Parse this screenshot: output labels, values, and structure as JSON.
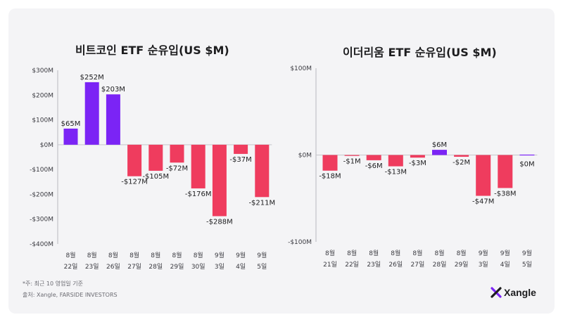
{
  "charts": [
    {
      "title": "비트코인 ETF 순유입(US $M)"
    },
    {
      "title": "이더리움 ETF 순유입(US $M)"
    }
  ],
  "chart_data": [
    {
      "type": "bar",
      "title": "비트코인 ETF 순유입(US $M)",
      "categories": [
        [
          "8월",
          "22일"
        ],
        [
          "8월",
          "23일"
        ],
        [
          "8월",
          "26일"
        ],
        [
          "8월",
          "27일"
        ],
        [
          "8월",
          "28일"
        ],
        [
          "8월",
          "29일"
        ],
        [
          "8월",
          "30일"
        ],
        [
          "9월",
          "3일"
        ],
        [
          "9월",
          "4일"
        ],
        [
          "9월",
          "5일"
        ]
      ],
      "values": [
        65,
        252,
        203,
        -127,
        -105,
        -72,
        -176,
        -288,
        -37,
        -211
      ],
      "data_labels": [
        "$65M",
        "$252M",
        "$203M",
        "-$127M",
        "-$105M",
        "-$72M",
        "-$176M",
        "-$288M",
        "-$37M",
        "-$211M"
      ],
      "ylim": [
        -400,
        300
      ],
      "yticks": [
        300,
        200,
        100,
        0,
        -100,
        -200,
        -300,
        -400
      ],
      "ytick_labels": [
        "$300M",
        "$200M",
        "$100M",
        "$0M",
        "-$100M",
        "-$200M",
        "-$300M",
        "-$400M"
      ],
      "grid": false,
      "colors": {
        "positive": "#7b24f5",
        "negative": "#ef3c5e"
      }
    },
    {
      "type": "bar",
      "title": "이더리움 ETF 순유입(US $M)",
      "categories": [
        [
          "8월",
          "21일"
        ],
        [
          "8월",
          "22일"
        ],
        [
          "8월",
          "23일"
        ],
        [
          "8월",
          "26일"
        ],
        [
          "8월",
          "27일"
        ],
        [
          "8월",
          "28일"
        ],
        [
          "8월",
          "29일"
        ],
        [
          "9월",
          "3일"
        ],
        [
          "9월",
          "4일"
        ],
        [
          "9월",
          "5일"
        ]
      ],
      "values": [
        -18,
        -1,
        -6,
        -13,
        -3,
        6,
        -2,
        -47,
        -38,
        0
      ],
      "data_labels": [
        "-$18M",
        "-$1M",
        "-$6M",
        "-$13M",
        "-$3M",
        "$6M",
        "-$2M",
        "-$47M",
        "-$38M",
        "$0M"
      ],
      "ylim": [
        -100,
        100
      ],
      "yticks": [
        100,
        0,
        -100
      ],
      "ytick_labels": [
        "$100M",
        "$0M",
        "-$100M"
      ],
      "grid": false,
      "colors": {
        "positive": "#7b24f5",
        "negative": "#ef3c5e"
      }
    }
  ],
  "footnotes": {
    "note": "*주: 최근 10 영업일 기준",
    "source": "출처: Xangle, FARSIDE INVESTORS"
  },
  "brand": {
    "name": "Xangle",
    "icon": "xangle-x-logo-icon",
    "accent": "#7b24f5"
  }
}
